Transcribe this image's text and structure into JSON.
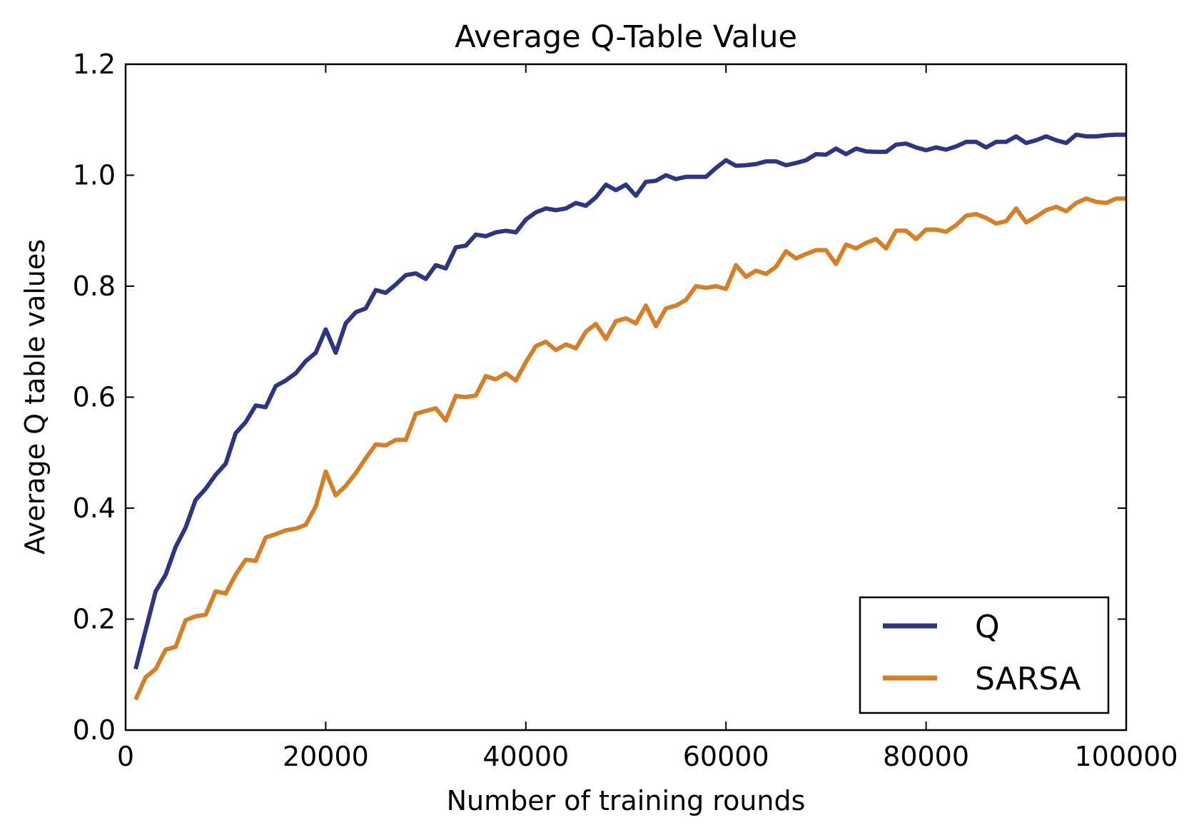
{
  "chart_data": {
    "type": "line",
    "title": "Average Q-Table Value",
    "xlabel": "Number of training rounds",
    "ylabel": "Average Q table values",
    "xlim": [
      0,
      100000
    ],
    "ylim": [
      0.0,
      1.2
    ],
    "xticks": [
      0,
      20000,
      40000,
      60000,
      80000,
      100000
    ],
    "xtick_labels": [
      "0",
      "20000",
      "40000",
      "60000",
      "80000",
      "100000"
    ],
    "yticks": [
      0.0,
      0.2,
      0.4,
      0.6,
      0.8,
      1.0,
      1.2
    ],
    "ytick_labels": [
      "0.0",
      "0.2",
      "0.4",
      "0.6",
      "0.8",
      "1.0",
      "1.2"
    ],
    "grid": false,
    "legend_position": "lower-right",
    "x": [
      1000,
      2000,
      3000,
      4000,
      5000,
      6000,
      7000,
      8000,
      9000,
      10000,
      11000,
      12000,
      13000,
      14000,
      15000,
      16000,
      17000,
      18000,
      19000,
      20000,
      21000,
      22000,
      23000,
      24000,
      25000,
      26000,
      27000,
      28000,
      29000,
      30000,
      31000,
      32000,
      33000,
      34000,
      35000,
      36000,
      37000,
      38000,
      39000,
      40000,
      41000,
      42000,
      43000,
      44000,
      45000,
      46000,
      47000,
      48000,
      49000,
      50000,
      51000,
      52000,
      53000,
      54000,
      55000,
      56000,
      57000,
      58000,
      59000,
      60000,
      61000,
      62000,
      63000,
      64000,
      65000,
      66000,
      67000,
      68000,
      69000,
      70000,
      71000,
      72000,
      73000,
      74000,
      75000,
      76000,
      77000,
      78000,
      79000,
      80000,
      81000,
      82000,
      83000,
      84000,
      85000,
      86000,
      87000,
      88000,
      89000,
      90000,
      91000,
      92000,
      93000,
      94000,
      95000,
      96000,
      97000,
      98000,
      99000,
      100000
    ],
    "series": [
      {
        "name": "Q",
        "color": "#2e3582",
        "values": [
          0.11,
          0.18,
          0.25,
          0.28,
          0.33,
          0.365,
          0.415,
          0.435,
          0.46,
          0.48,
          0.535,
          0.555,
          0.585,
          0.582,
          0.62,
          0.63,
          0.643,
          0.665,
          0.68,
          0.722,
          0.68,
          0.733,
          0.753,
          0.76,
          0.793,
          0.788,
          0.803,
          0.82,
          0.823,
          0.813,
          0.838,
          0.832,
          0.87,
          0.873,
          0.893,
          0.89,
          0.897,
          0.9,
          0.897,
          0.92,
          0.933,
          0.94,
          0.937,
          0.94,
          0.95,
          0.945,
          0.96,
          0.983,
          0.973,
          0.983,
          0.963,
          0.988,
          0.99,
          1.0,
          0.993,
          0.997,
          0.997,
          0.997,
          1.013,
          1.027,
          1.017,
          1.018,
          1.02,
          1.025,
          1.025,
          1.018,
          1.022,
          1.027,
          1.038,
          1.037,
          1.048,
          1.038,
          1.048,
          1.043,
          1.042,
          1.042,
          1.055,
          1.057,
          1.05,
          1.045,
          1.05,
          1.046,
          1.052,
          1.06,
          1.06,
          1.05,
          1.06,
          1.06,
          1.07,
          1.058,
          1.063,
          1.07,
          1.063,
          1.058,
          1.073,
          1.07,
          1.07,
          1.072,
          1.073,
          1.073
        ]
      },
      {
        "name": "SARSA",
        "color": "#d67f27",
        "values": [
          0.055,
          0.095,
          0.11,
          0.145,
          0.15,
          0.198,
          0.205,
          0.208,
          0.25,
          0.246,
          0.28,
          0.307,
          0.305,
          0.347,
          0.353,
          0.36,
          0.363,
          0.37,
          0.403,
          0.466,
          0.423,
          0.44,
          0.463,
          0.49,
          0.515,
          0.513,
          0.523,
          0.523,
          0.57,
          0.575,
          0.58,
          0.558,
          0.602,
          0.6,
          0.603,
          0.638,
          0.632,
          0.643,
          0.63,
          0.663,
          0.692,
          0.7,
          0.685,
          0.695,
          0.688,
          0.718,
          0.732,
          0.705,
          0.737,
          0.742,
          0.733,
          0.765,
          0.728,
          0.76,
          0.765,
          0.775,
          0.8,
          0.797,
          0.8,
          0.795,
          0.838,
          0.817,
          0.828,
          0.822,
          0.835,
          0.863,
          0.85,
          0.858,
          0.865,
          0.865,
          0.84,
          0.875,
          0.868,
          0.878,
          0.885,
          0.868,
          0.9,
          0.9,
          0.885,
          0.902,
          0.902,
          0.898,
          0.91,
          0.927,
          0.93,
          0.923,
          0.913,
          0.917,
          0.94,
          0.915,
          0.925,
          0.937,
          0.943,
          0.935,
          0.95,
          0.958,
          0.952,
          0.95,
          0.958,
          0.958
        ]
      }
    ]
  }
}
